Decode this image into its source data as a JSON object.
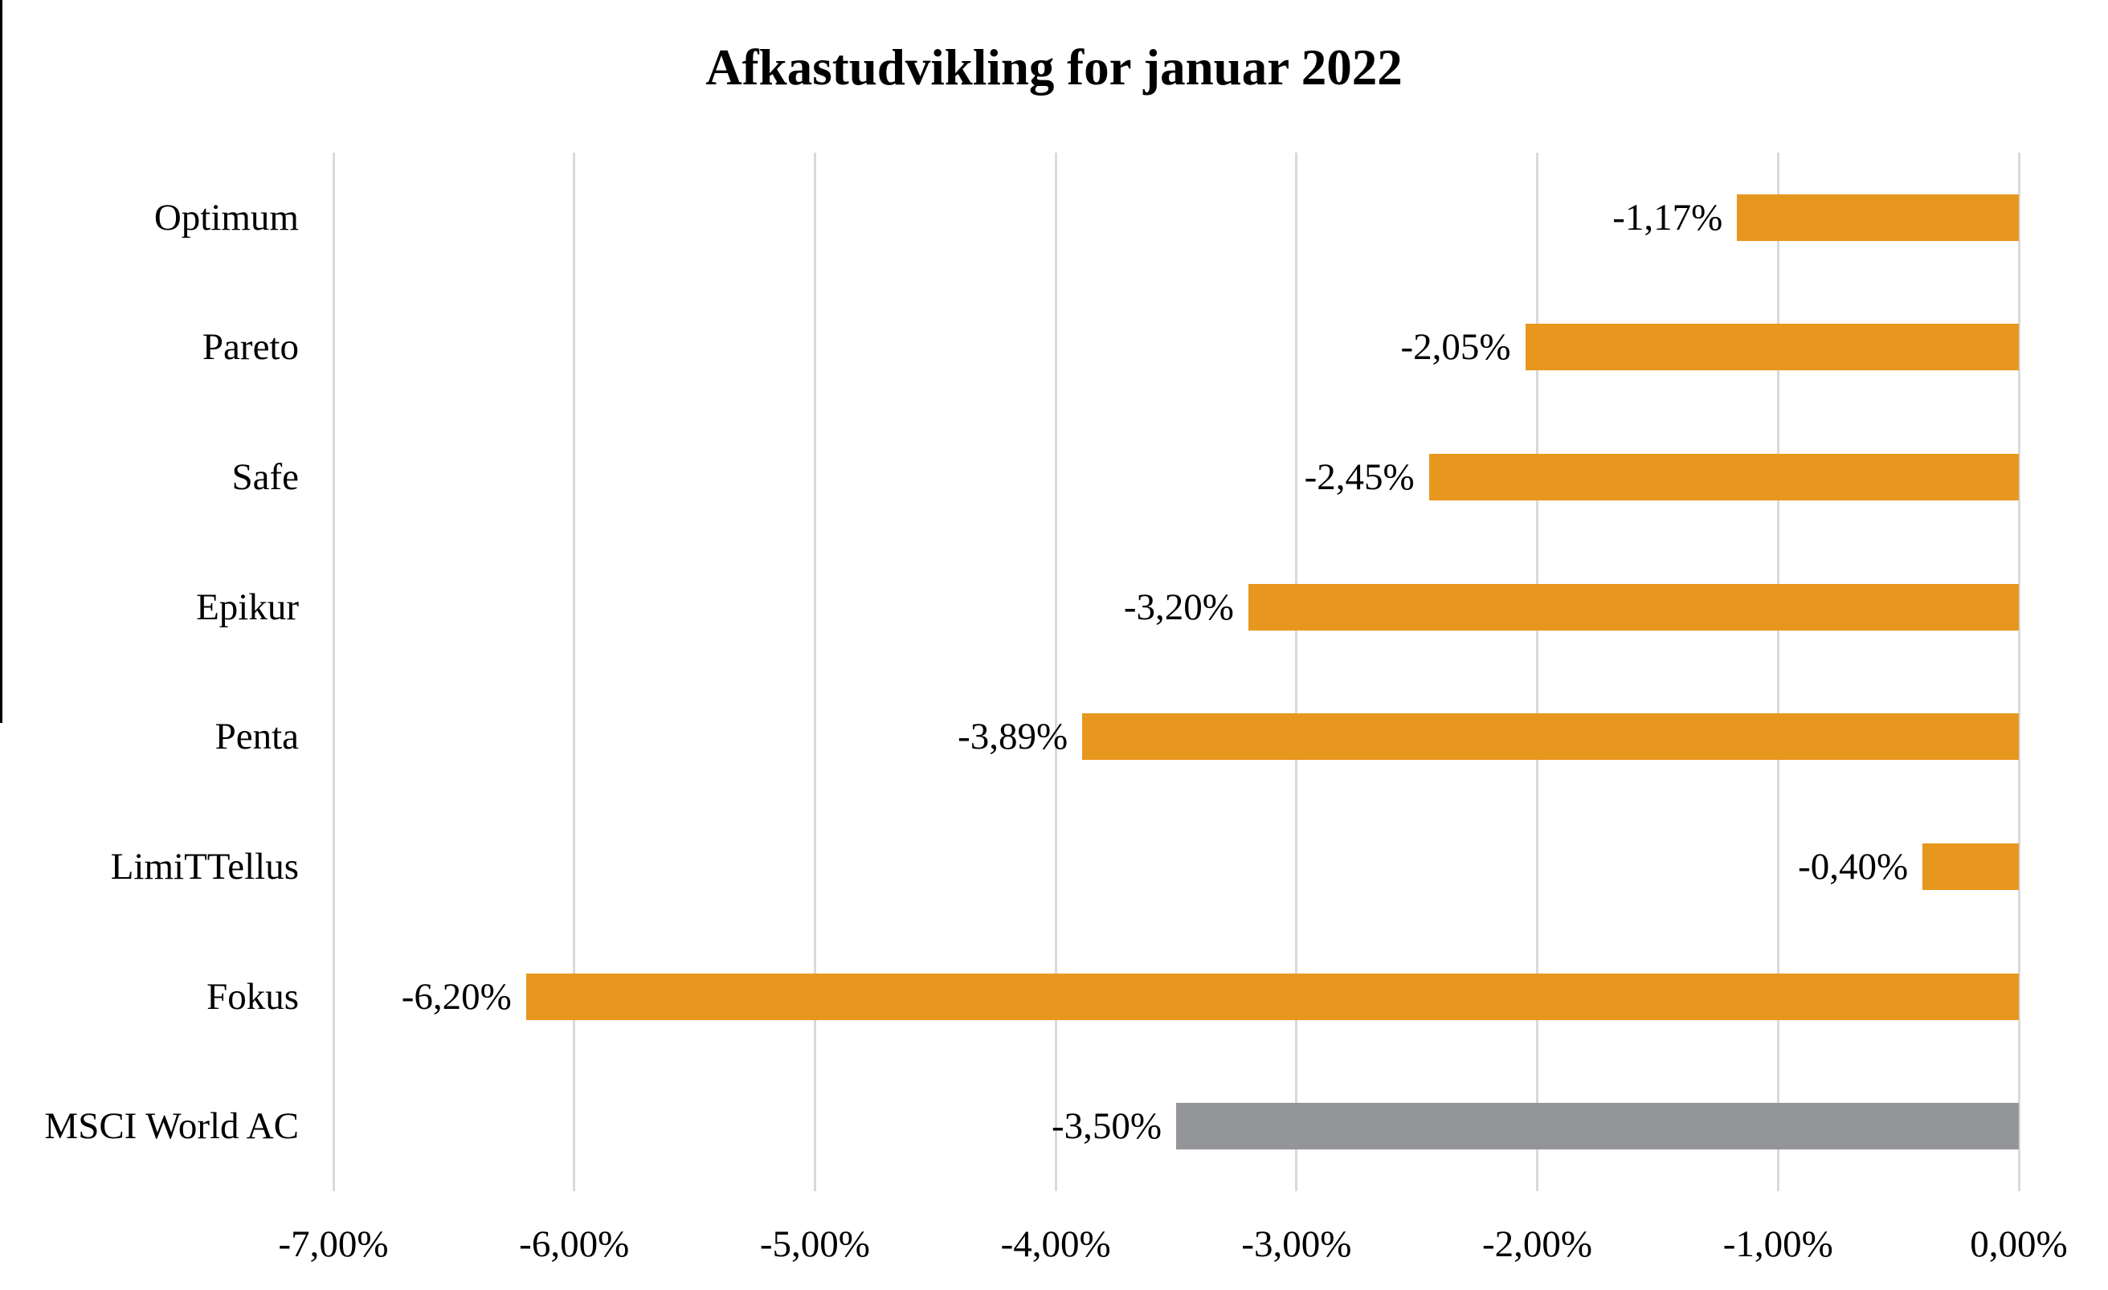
{
  "page": {
    "background_color": "#ffffff",
    "left_border_color": "#000000"
  },
  "chart_data": {
    "type": "bar",
    "orientation": "horizontal",
    "title": "Afkastudvikling for januar 2022",
    "categories": [
      "Optimum",
      "Pareto",
      "Safe",
      "Epikur",
      "Penta",
      "LimiTTellus",
      "Fokus",
      "MSCI World AC"
    ],
    "values": [
      -1.17,
      -2.05,
      -2.45,
      -3.2,
      -3.89,
      -0.4,
      -6.2,
      -3.5
    ],
    "data_labels": [
      "-1,17%",
      "-2,05%",
      "-2,45%",
      "-3,20%",
      "-3,89%",
      "-0,40%",
      "-6,20%",
      "-3,50%"
    ],
    "bar_colors": [
      "#E8971E",
      "#E8971E",
      "#E8971E",
      "#E8971E",
      "#E8971E",
      "#E8971E",
      "#E8971E",
      "#939598"
    ],
    "series_color": "#E8971E",
    "benchmark_color": "#939598",
    "xlabel": "",
    "ylabel": "",
    "x_axis": {
      "min": -7,
      "max": 0,
      "tick_labels": [
        "-7,00%",
        "-6,00%",
        "-5,00%",
        "-4,00%",
        "-3,00%",
        "-2,00%",
        "-1,00%",
        "0,00%"
      ]
    },
    "grid": true,
    "gridline_color": "#d9d9d9",
    "legend": "none",
    "value_label_position": "left-of-bar-end"
  }
}
